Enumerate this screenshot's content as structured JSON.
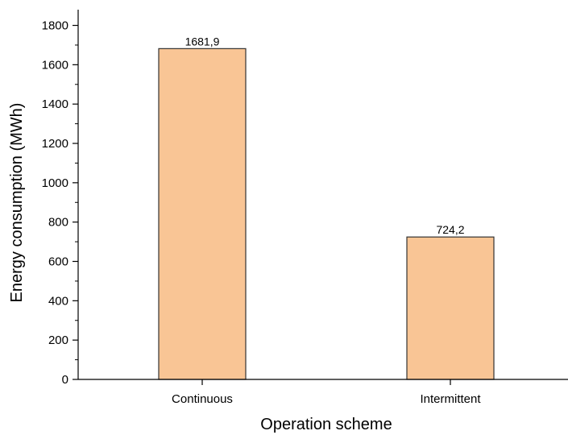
{
  "chart_data": {
    "type": "bar",
    "title": "",
    "xlabel": "Operation scheme",
    "ylabel": "Energy consumption (MWh)",
    "categories": [
      "Continuous",
      "Intermittent"
    ],
    "values": [
      1681.9,
      724.2
    ],
    "value_labels": [
      "1681,9",
      "724,2"
    ],
    "ylim": [
      0,
      1880
    ],
    "yticks": [
      0,
      200,
      400,
      600,
      800,
      1000,
      1200,
      1400,
      1600,
      1800
    ],
    "ytick_labels": [
      "0",
      "200",
      "400",
      "600",
      "800",
      "1000",
      "1200",
      "1400",
      "1600",
      "1800"
    ],
    "minor_ytick_step": 100,
    "grid": false,
    "legend": "none",
    "colors": {
      "bar_fill": "#F9C595",
      "bar_stroke": "#333333",
      "axis": "#000000"
    }
  }
}
